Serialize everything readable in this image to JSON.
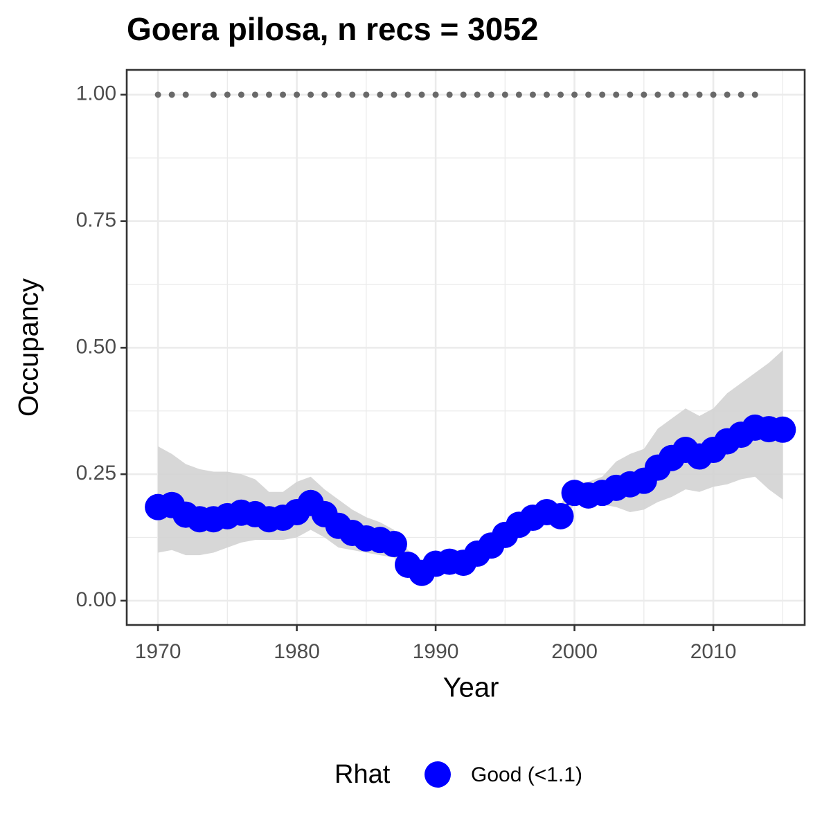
{
  "chart_data": {
    "type": "line",
    "title": "Goera pilosa, n recs = 3052",
    "x_label": "Year",
    "y_label": "Occupancy",
    "x": [
      1970,
      1971,
      1972,
      1973,
      1974,
      1975,
      1976,
      1977,
      1978,
      1979,
      1980,
      1981,
      1982,
      1983,
      1984,
      1985,
      1986,
      1987,
      1988,
      1989,
      1990,
      1991,
      1992,
      1993,
      1994,
      1995,
      1996,
      1997,
      1998,
      1999,
      2000,
      2001,
      2002,
      2003,
      2004,
      2005,
      2006,
      2007,
      2008,
      2009,
      2010,
      2011,
      2012,
      2013,
      2014,
      2015
    ],
    "series": [
      {
        "name": "Good (<1.1)",
        "color": "#0000ff",
        "values": [
          0.185,
          0.189,
          0.17,
          0.161,
          0.161,
          0.167,
          0.174,
          0.171,
          0.161,
          0.164,
          0.175,
          0.193,
          0.171,
          0.148,
          0.134,
          0.123,
          0.12,
          0.112,
          0.071,
          0.055,
          0.073,
          0.077,
          0.075,
          0.093,
          0.109,
          0.13,
          0.15,
          0.164,
          0.175,
          0.167,
          0.213,
          0.208,
          0.213,
          0.223,
          0.23,
          0.237,
          0.263,
          0.282,
          0.298,
          0.285,
          0.298,
          0.315,
          0.328,
          0.342,
          0.339,
          0.338
        ],
        "lower": [
          0.095,
          0.1,
          0.09,
          0.09,
          0.095,
          0.105,
          0.115,
          0.12,
          0.12,
          0.12,
          0.125,
          0.14,
          0.125,
          0.105,
          0.1,
          0.095,
          0.09,
          0.085,
          0.05,
          0.035,
          0.05,
          0.055,
          0.055,
          0.07,
          0.085,
          0.11,
          0.13,
          0.145,
          0.155,
          0.15,
          0.19,
          0.19,
          0.19,
          0.185,
          0.175,
          0.18,
          0.195,
          0.205,
          0.22,
          0.215,
          0.225,
          0.23,
          0.24,
          0.245,
          0.22,
          0.2
        ],
        "upper": [
          0.305,
          0.29,
          0.27,
          0.26,
          0.255,
          0.255,
          0.25,
          0.24,
          0.215,
          0.215,
          0.235,
          0.245,
          0.22,
          0.2,
          0.18,
          0.165,
          0.155,
          0.14,
          0.1,
          0.08,
          0.095,
          0.1,
          0.1,
          0.115,
          0.13,
          0.15,
          0.17,
          0.185,
          0.19,
          0.19,
          0.235,
          0.235,
          0.245,
          0.275,
          0.29,
          0.3,
          0.34,
          0.36,
          0.38,
          0.365,
          0.38,
          0.41,
          0.43,
          0.45,
          0.47,
          0.495
        ]
      }
    ],
    "records": {
      "color": "#696969",
      "x": [
        1970,
        1971,
        1972,
        1974,
        1975,
        1976,
        1977,
        1978,
        1979,
        1980,
        1981,
        1982,
        1983,
        1984,
        1985,
        1986,
        1987,
        1988,
        1989,
        1990,
        1991,
        1992,
        1993,
        1994,
        1995,
        1996,
        1997,
        1998,
        1999,
        2000,
        2001,
        2002,
        2003,
        2004,
        2005,
        2006,
        2007,
        2008,
        2009,
        2010,
        2011,
        2012,
        2013
      ],
      "values": [
        1,
        1,
        1,
        1,
        1,
        1,
        1,
        1,
        1,
        1,
        1,
        1,
        1,
        1,
        1,
        1,
        1,
        1,
        1,
        1,
        1,
        1,
        1,
        1,
        1,
        1,
        1,
        1,
        1,
        1,
        1,
        1,
        1,
        1,
        1,
        1,
        1,
        1,
        1,
        1,
        1,
        1,
        1
      ]
    },
    "ribbon_color": "#d3d3d3",
    "legend_title": "Rhat",
    "legend_position": "bottom",
    "xlim": [
      1967.75,
      2016.58
    ],
    "ylim": [
      -0.048,
      1.049
    ],
    "xticks": [
      1970,
      1980,
      1990,
      2000,
      2010
    ],
    "yticks": [
      {
        "value": 0,
        "label": "0.00"
      },
      {
        "value": 0.25,
        "label": "0.25"
      },
      {
        "value": 0.5,
        "label": "0.50"
      },
      {
        "value": 0.75,
        "label": "0.75"
      },
      {
        "value": 1,
        "label": "1.00"
      }
    ],
    "minor_xticks": [
      1975,
      1985,
      1995,
      2005,
      2015
    ],
    "minor_yticks": [
      0.125,
      0.375,
      0.625,
      0.875
    ],
    "grid": true
  }
}
